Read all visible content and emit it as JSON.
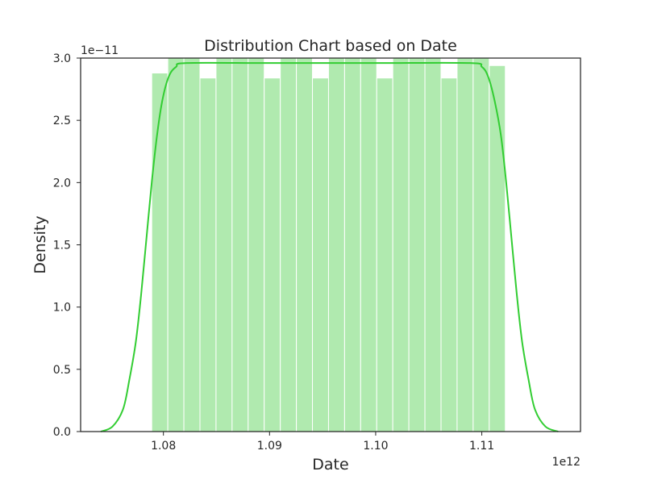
{
  "chart_data": {
    "type": "bar",
    "title": "Distribution Chart based on Date",
    "xlabel": "Date",
    "ylabel": "Density",
    "x_offset_label": "1e12",
    "y_offset_label": "1e−11",
    "xlim": [
      1.0722,
      1.1193
    ],
    "ylim": [
      0,
      3.0
    ],
    "x_ticks": [
      1.08,
      1.09,
      1.1,
      1.11
    ],
    "x_tick_labels": [
      "1.08",
      "1.09",
      "1.10",
      "1.11"
    ],
    "y_ticks": [
      0.0,
      0.5,
      1.0,
      1.5,
      2.0,
      2.5,
      3.0
    ],
    "y_tick_labels": [
      "0.0",
      "0.5",
      "1.0",
      "1.5",
      "2.0",
      "2.5",
      "3.0"
    ],
    "grid": false,
    "colors": {
      "bar": "#b0eaaf",
      "bar_edge": "#ffffff",
      "kde": "#32cd32",
      "frame": "#262626"
    },
    "bins": {
      "start": 1.0789,
      "width": 0.0015143,
      "values": [
        2.88,
        3.0,
        3.0,
        2.84,
        3.0,
        3.0,
        3.0,
        2.84,
        3.0,
        3.0,
        2.84,
        3.0,
        3.0,
        3.0,
        2.84,
        3.0,
        3.0,
        3.0,
        2.84,
        3.0,
        3.0,
        2.94
      ]
    },
    "kde": {
      "x": [
        1.0741,
        1.0752,
        1.0762,
        1.0768,
        1.0774,
        1.0779,
        1.0784,
        1.0789,
        1.0794,
        1.0799,
        1.0805,
        1.0812,
        1.0822,
        1.09,
        1.1,
        1.1089,
        1.11,
        1.1106,
        1.1112,
        1.1118,
        1.1123,
        1.1128,
        1.1133,
        1.1138,
        1.1144,
        1.115,
        1.116,
        1.1172
      ],
      "y": [
        0.0,
        0.04,
        0.18,
        0.42,
        0.72,
        1.1,
        1.55,
        2.0,
        2.38,
        2.66,
        2.85,
        2.93,
        2.96,
        2.96,
        2.96,
        2.96,
        2.93,
        2.85,
        2.66,
        2.38,
        2.0,
        1.55,
        1.1,
        0.72,
        0.42,
        0.18,
        0.04,
        0.0
      ]
    }
  }
}
